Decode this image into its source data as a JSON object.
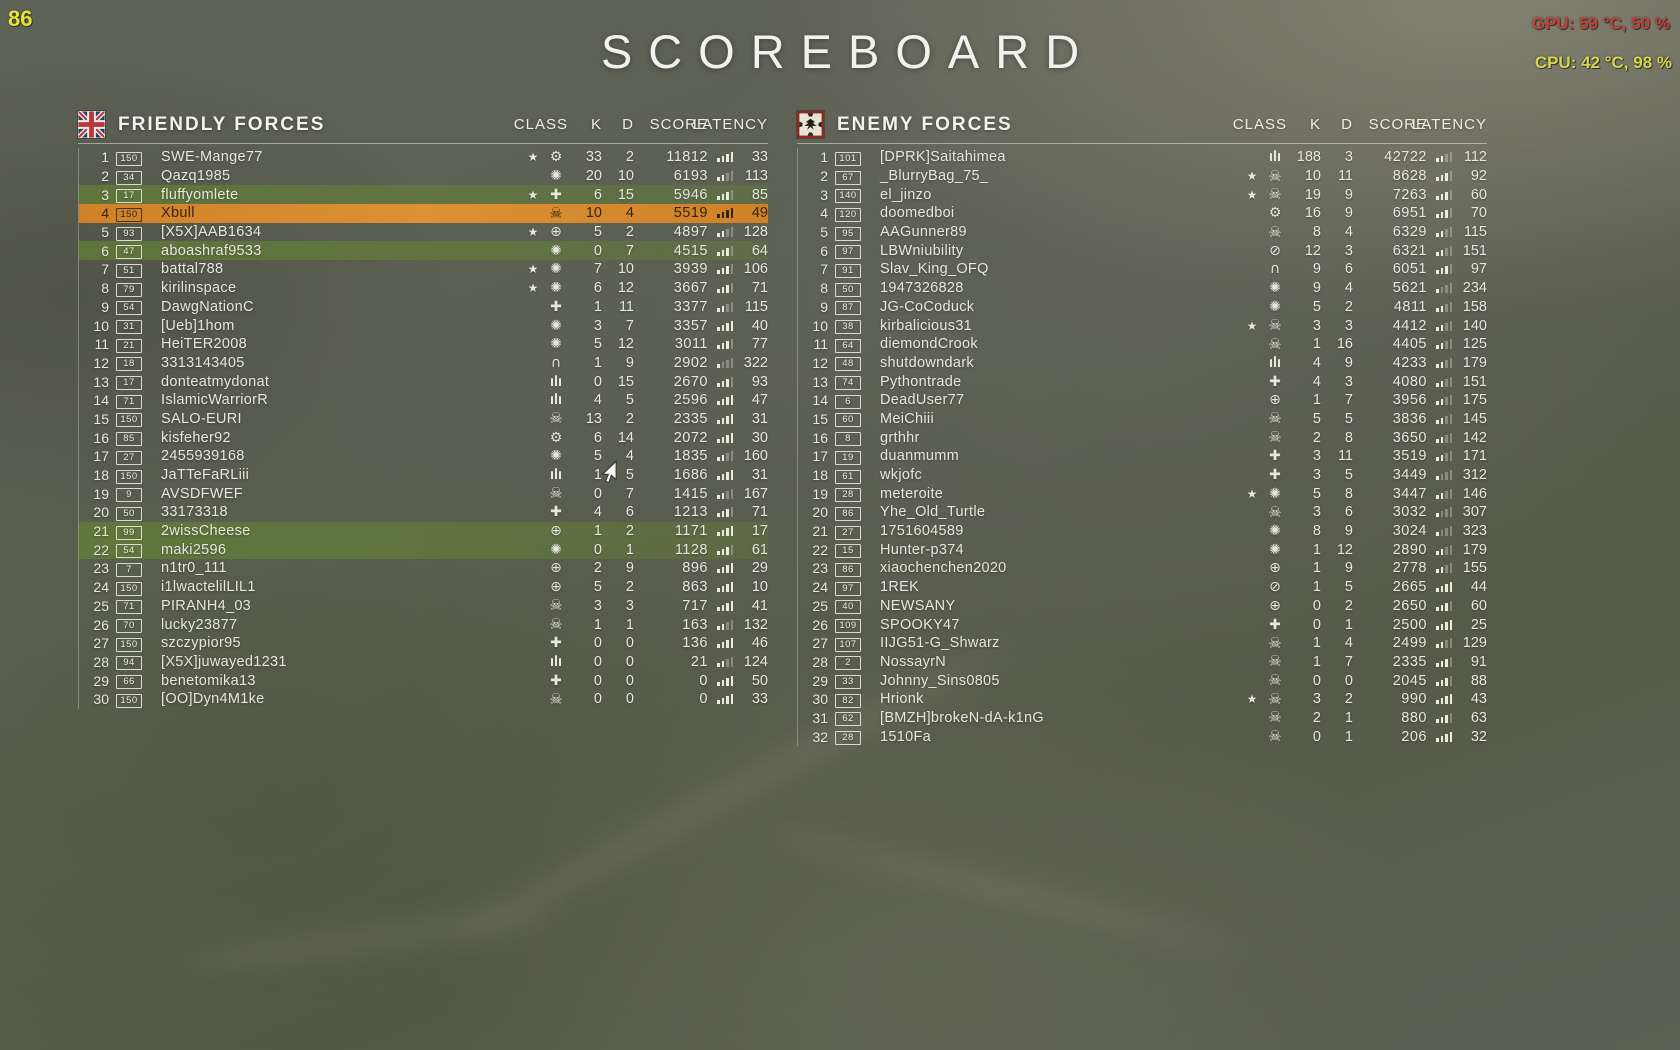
{
  "osd": {
    "fps": "86",
    "gpu_text": "GPU: 59 °C, 50 %",
    "cpu_text": "CPU: 42 °C, 98 %",
    "fps_color": "#e8e437",
    "gpu_color": "#c0403a",
    "cpu_color": "#d9d44b"
  },
  "title": "SCOREBOARD",
  "columns": {
    "class_label": "CLASS",
    "kills_label": "K",
    "deaths_label": "D",
    "score_label": "SCORE",
    "latency_label": "LATENCY"
  },
  "colors": {
    "self_row_highlight": "#d9892d",
    "squad_row_highlight": "#628334",
    "row_text": "#e7e6df"
  },
  "teams": [
    {
      "name": "FRIENDLY FORCES",
      "flag": "uk-flag",
      "players": [
        {
          "rank": 1,
          "level": "150",
          "name": "SWE-Mange77",
          "squad_star": true,
          "class_icon": "gear",
          "kills": 33,
          "deaths": 2,
          "score": 11812,
          "latency": 33,
          "highlight": ""
        },
        {
          "rank": 2,
          "level": "34",
          "name": "Qazq1985",
          "squad_star": false,
          "class_icon": "grenade",
          "kills": 20,
          "deaths": 10,
          "score": 6193,
          "latency": 113,
          "highlight": ""
        },
        {
          "rank": 3,
          "level": "17",
          "name": "fluffyomlete",
          "squad_star": true,
          "class_icon": "cross",
          "kills": 6,
          "deaths": 15,
          "score": 5946,
          "latency": 85,
          "highlight": "squad"
        },
        {
          "rank": 4,
          "level": "150",
          "name": "Xbull",
          "squad_star": false,
          "class_icon": "skull",
          "kills": 10,
          "deaths": 4,
          "score": 5519,
          "latency": 49,
          "highlight": "self"
        },
        {
          "rank": 5,
          "level": "93",
          "name": "[X5X]AAB1634",
          "squad_star": true,
          "class_icon": "wheel",
          "kills": 5,
          "deaths": 2,
          "score": 4897,
          "latency": 128,
          "highlight": ""
        },
        {
          "rank": 6,
          "level": "47",
          "name": "aboashraf9533",
          "squad_star": false,
          "class_icon": "grenade",
          "kills": 0,
          "deaths": 7,
          "score": 4515,
          "latency": 64,
          "highlight": "squad"
        },
        {
          "rank": 7,
          "level": "51",
          "name": "battal788",
          "squad_star": true,
          "class_icon": "grenade",
          "kills": 7,
          "deaths": 10,
          "score": 3939,
          "latency": 106,
          "highlight": ""
        },
        {
          "rank": 8,
          "level": "79",
          "name": "kirilinspace",
          "squad_star": true,
          "class_icon": "grenade",
          "kills": 6,
          "deaths": 12,
          "score": 3667,
          "latency": 71,
          "highlight": ""
        },
        {
          "rank": 9,
          "level": "54",
          "name": "DawgNationC",
          "squad_star": false,
          "class_icon": "cross",
          "kills": 1,
          "deaths": 11,
          "score": 3377,
          "latency": 115,
          "highlight": ""
        },
        {
          "rank": 10,
          "level": "31",
          "name": "[Ueb]1hom",
          "squad_star": false,
          "class_icon": "grenade",
          "kills": 3,
          "deaths": 7,
          "score": 3357,
          "latency": 40,
          "highlight": ""
        },
        {
          "rank": 11,
          "level": "21",
          "name": "HeiTER2008",
          "squad_star": false,
          "class_icon": "grenade",
          "kills": 5,
          "deaths": 12,
          "score": 3011,
          "latency": 77,
          "highlight": ""
        },
        {
          "rank": 12,
          "level": "18",
          "name": "3313143405",
          "squad_star": false,
          "class_icon": "horseshoe",
          "kills": 1,
          "deaths": 9,
          "score": 2902,
          "latency": 322,
          "highlight": ""
        },
        {
          "rank": 13,
          "level": "17",
          "name": "donteatmydonat",
          "squad_star": false,
          "class_icon": "bullets",
          "kills": 0,
          "deaths": 15,
          "score": 2670,
          "latency": 93,
          "highlight": ""
        },
        {
          "rank": 14,
          "level": "71",
          "name": "IslamicWarriorR",
          "squad_star": false,
          "class_icon": "bullets",
          "kills": 4,
          "deaths": 5,
          "score": 2596,
          "latency": 47,
          "highlight": ""
        },
        {
          "rank": 15,
          "level": "150",
          "name": "SALO-EURI",
          "squad_star": false,
          "class_icon": "skull",
          "kills": 13,
          "deaths": 2,
          "score": 2335,
          "latency": 31,
          "highlight": ""
        },
        {
          "rank": 16,
          "level": "85",
          "name": "kisfeher92",
          "squad_star": false,
          "class_icon": "gear",
          "kills": 6,
          "deaths": 14,
          "score": 2072,
          "latency": 30,
          "highlight": ""
        },
        {
          "rank": 17,
          "level": "27",
          "name": "2455939168",
          "squad_star": false,
          "class_icon": "grenade",
          "kills": 5,
          "deaths": 4,
          "score": 1835,
          "latency": 160,
          "highlight": ""
        },
        {
          "rank": 18,
          "level": "150",
          "name": "JaTTeFaRLiii",
          "squad_star": false,
          "class_icon": "bullets",
          "kills": 1,
          "deaths": 5,
          "score": 1686,
          "latency": 31,
          "highlight": ""
        },
        {
          "rank": 19,
          "level": "9",
          "name": "AVSDFWEF",
          "squad_star": false,
          "class_icon": "skull",
          "kills": 0,
          "deaths": 7,
          "score": 1415,
          "latency": 167,
          "highlight": ""
        },
        {
          "rank": 20,
          "level": "50",
          "name": "33173318",
          "squad_star": false,
          "class_icon": "cross",
          "kills": 4,
          "deaths": 6,
          "score": 1213,
          "latency": 71,
          "highlight": ""
        },
        {
          "rank": 21,
          "level": "99",
          "name": "2wissCheese",
          "squad_star": false,
          "class_icon": "wheel",
          "kills": 1,
          "deaths": 2,
          "score": 1171,
          "latency": 17,
          "highlight": "squad"
        },
        {
          "rank": 22,
          "level": "54",
          "name": "maki2596",
          "squad_star": false,
          "class_icon": "grenade",
          "kills": 0,
          "deaths": 1,
          "score": 1128,
          "latency": 61,
          "highlight": "squad"
        },
        {
          "rank": 23,
          "level": "7",
          "name": "n1tr0_111",
          "squad_star": false,
          "class_icon": "wheel",
          "kills": 2,
          "deaths": 9,
          "score": 896,
          "latency": 29,
          "highlight": ""
        },
        {
          "rank": 24,
          "level": "150",
          "name": "i1lwactelilLIL1",
          "squad_star": false,
          "class_icon": "wheel",
          "kills": 5,
          "deaths": 2,
          "score": 863,
          "latency": 10,
          "highlight": ""
        },
        {
          "rank": 25,
          "level": "71",
          "name": "PIRANH4_03",
          "squad_star": false,
          "class_icon": "skull",
          "kills": 3,
          "deaths": 3,
          "score": 717,
          "latency": 41,
          "highlight": ""
        },
        {
          "rank": 26,
          "level": "70",
          "name": "lucky23877",
          "squad_star": false,
          "class_icon": "skull",
          "kills": 1,
          "deaths": 1,
          "score": 163,
          "latency": 132,
          "highlight": ""
        },
        {
          "rank": 27,
          "level": "150",
          "name": "szczypior95",
          "squad_star": false,
          "class_icon": "cross",
          "kills": 0,
          "deaths": 0,
          "score": 136,
          "latency": 46,
          "highlight": ""
        },
        {
          "rank": 28,
          "level": "94",
          "name": "[X5X]juwayed1231",
          "squad_star": false,
          "class_icon": "bullets",
          "kills": 0,
          "deaths": 0,
          "score": 21,
          "latency": 124,
          "highlight": ""
        },
        {
          "rank": 29,
          "level": "66",
          "name": "benetomika13",
          "squad_star": false,
          "class_icon": "cross",
          "kills": 0,
          "deaths": 0,
          "score": 0,
          "latency": 50,
          "highlight": ""
        },
        {
          "rank": 30,
          "level": "150",
          "name": "[OO]Dyn4M1ke",
          "squad_star": false,
          "class_icon": "skull",
          "kills": 0,
          "deaths": 0,
          "score": 0,
          "latency": 33,
          "highlight": ""
        }
      ]
    },
    {
      "name": "ENEMY FORCES",
      "flag": "german-empire-flag",
      "players": [
        {
          "rank": 1,
          "level": "101",
          "name": "[DPRK]Saitahimea",
          "squad_star": false,
          "class_icon": "bullets",
          "kills": 188,
          "deaths": 3,
          "score": 42722,
          "latency": 112,
          "highlight": ""
        },
        {
          "rank": 2,
          "level": "67",
          "name": "_BlurryBag_75_",
          "squad_star": true,
          "class_icon": "skull",
          "kills": 10,
          "deaths": 11,
          "score": 8628,
          "latency": 92,
          "highlight": ""
        },
        {
          "rank": 3,
          "level": "140",
          "name": "el_jinzo",
          "squad_star": true,
          "class_icon": "skull",
          "kills": 19,
          "deaths": 9,
          "score": 7263,
          "latency": 60,
          "highlight": ""
        },
        {
          "rank": 4,
          "level": "120",
          "name": "doomedboi",
          "squad_star": false,
          "class_icon": "gear",
          "kills": 16,
          "deaths": 9,
          "score": 6951,
          "latency": 70,
          "highlight": ""
        },
        {
          "rank": 5,
          "level": "95",
          "name": "AAGunner89",
          "squad_star": false,
          "class_icon": "skull",
          "kills": 8,
          "deaths": 4,
          "score": 6329,
          "latency": 115,
          "highlight": ""
        },
        {
          "rank": 6,
          "level": "97",
          "name": "LBWniubility",
          "squad_star": false,
          "class_icon": "propeller",
          "kills": 12,
          "deaths": 3,
          "score": 6321,
          "latency": 151,
          "highlight": ""
        },
        {
          "rank": 7,
          "level": "91",
          "name": "Slav_King_OFQ",
          "squad_star": false,
          "class_icon": "horseshoe",
          "kills": 9,
          "deaths": 6,
          "score": 6051,
          "latency": 97,
          "highlight": ""
        },
        {
          "rank": 8,
          "level": "50",
          "name": "1947326828",
          "squad_star": false,
          "class_icon": "grenade",
          "kills": 9,
          "deaths": 4,
          "score": 5621,
          "latency": 234,
          "highlight": ""
        },
        {
          "rank": 9,
          "level": "87",
          "name": "JG-CoCoduck",
          "squad_star": false,
          "class_icon": "grenade",
          "kills": 5,
          "deaths": 2,
          "score": 4811,
          "latency": 158,
          "highlight": ""
        },
        {
          "rank": 10,
          "level": "38",
          "name": "kirbalicious31",
          "squad_star": true,
          "class_icon": "skull",
          "kills": 3,
          "deaths": 3,
          "score": 4412,
          "latency": 140,
          "highlight": ""
        },
        {
          "rank": 11,
          "level": "64",
          "name": "diemondCrook",
          "squad_star": false,
          "class_icon": "skull",
          "kills": 1,
          "deaths": 16,
          "score": 4405,
          "latency": 125,
          "highlight": ""
        },
        {
          "rank": 12,
          "level": "48",
          "name": "shutdowndark",
          "squad_star": false,
          "class_icon": "bullets",
          "kills": 4,
          "deaths": 9,
          "score": 4233,
          "latency": 179,
          "highlight": ""
        },
        {
          "rank": 13,
          "level": "74",
          "name": "Pythontrade",
          "squad_star": false,
          "class_icon": "cross",
          "kills": 4,
          "deaths": 3,
          "score": 4080,
          "latency": 151,
          "highlight": ""
        },
        {
          "rank": 14,
          "level": "6",
          "name": "DeadUser77",
          "squad_star": false,
          "class_icon": "wheel",
          "kills": 1,
          "deaths": 7,
          "score": 3956,
          "latency": 175,
          "highlight": ""
        },
        {
          "rank": 15,
          "level": "60",
          "name": "MeiChiii",
          "squad_star": false,
          "class_icon": "skull",
          "kills": 5,
          "deaths": 5,
          "score": 3836,
          "latency": 145,
          "highlight": ""
        },
        {
          "rank": 16,
          "level": "8",
          "name": "grthhr",
          "squad_star": false,
          "class_icon": "skull",
          "kills": 2,
          "deaths": 8,
          "score": 3650,
          "latency": 142,
          "highlight": ""
        },
        {
          "rank": 17,
          "level": "19",
          "name": "duanmumm",
          "squad_star": false,
          "class_icon": "cross",
          "kills": 3,
          "deaths": 11,
          "score": 3519,
          "latency": 171,
          "highlight": ""
        },
        {
          "rank": 18,
          "level": "61",
          "name": "wkjofc",
          "squad_star": false,
          "class_icon": "cross",
          "kills": 3,
          "deaths": 5,
          "score": 3449,
          "latency": 312,
          "highlight": ""
        },
        {
          "rank": 19,
          "level": "28",
          "name": "meteroite",
          "squad_star": true,
          "class_icon": "grenade",
          "kills": 5,
          "deaths": 8,
          "score": 3447,
          "latency": 146,
          "highlight": ""
        },
        {
          "rank": 20,
          "level": "86",
          "name": "Yhe_Old_Turtle",
          "squad_star": false,
          "class_icon": "skull",
          "kills": 3,
          "deaths": 6,
          "score": 3032,
          "latency": 307,
          "highlight": ""
        },
        {
          "rank": 21,
          "level": "27",
          "name": "1751604589",
          "squad_star": false,
          "class_icon": "grenade",
          "kills": 8,
          "deaths": 9,
          "score": 3024,
          "latency": 323,
          "highlight": ""
        },
        {
          "rank": 22,
          "level": "15",
          "name": "Hunter-p374",
          "squad_star": false,
          "class_icon": "grenade",
          "kills": 1,
          "deaths": 12,
          "score": 2890,
          "latency": 179,
          "highlight": ""
        },
        {
          "rank": 23,
          "level": "86",
          "name": "xiaochenchen2020",
          "squad_star": false,
          "class_icon": "wheel",
          "kills": 1,
          "deaths": 9,
          "score": 2778,
          "latency": 155,
          "highlight": ""
        },
        {
          "rank": 24,
          "level": "97",
          "name": "1REK",
          "squad_star": false,
          "class_icon": "propeller",
          "kills": 1,
          "deaths": 5,
          "score": 2665,
          "latency": 44,
          "highlight": ""
        },
        {
          "rank": 25,
          "level": "40",
          "name": "NEWSANY",
          "squad_star": false,
          "class_icon": "wheel",
          "kills": 0,
          "deaths": 2,
          "score": 2650,
          "latency": 60,
          "highlight": ""
        },
        {
          "rank": 26,
          "level": "109",
          "name": "SPOOKY47",
          "squad_star": false,
          "class_icon": "cross",
          "kills": 0,
          "deaths": 1,
          "score": 2500,
          "latency": 25,
          "highlight": ""
        },
        {
          "rank": 27,
          "level": "107",
          "name": "IIJG51-G_Shwarz",
          "squad_star": false,
          "class_icon": "skull",
          "kills": 1,
          "deaths": 4,
          "score": 2499,
          "latency": 129,
          "highlight": ""
        },
        {
          "rank": 28,
          "level": "2",
          "name": "NossayrN",
          "squad_star": false,
          "class_icon": "skull",
          "kills": 1,
          "deaths": 7,
          "score": 2335,
          "latency": 91,
          "highlight": ""
        },
        {
          "rank": 29,
          "level": "33",
          "name": "Johnny_Sins0805",
          "squad_star": false,
          "class_icon": "skull",
          "kills": 0,
          "deaths": 0,
          "score": 2045,
          "latency": 88,
          "highlight": ""
        },
        {
          "rank": 30,
          "level": "82",
          "name": "Hrionk",
          "squad_star": true,
          "class_icon": "skull",
          "kills": 3,
          "deaths": 2,
          "score": 990,
          "latency": 43,
          "highlight": ""
        },
        {
          "rank": 31,
          "level": "62",
          "name": "[BMZH]brokeN-dA-k1nG",
          "squad_star": false,
          "class_icon": "skull",
          "kills": 2,
          "deaths": 1,
          "score": 880,
          "latency": 63,
          "highlight": ""
        },
        {
          "rank": 32,
          "level": "28",
          "name": "1510Fa",
          "squad_star": false,
          "class_icon": "skull",
          "kills": 0,
          "deaths": 1,
          "score": 206,
          "latency": 32,
          "highlight": ""
        }
      ]
    }
  ]
}
